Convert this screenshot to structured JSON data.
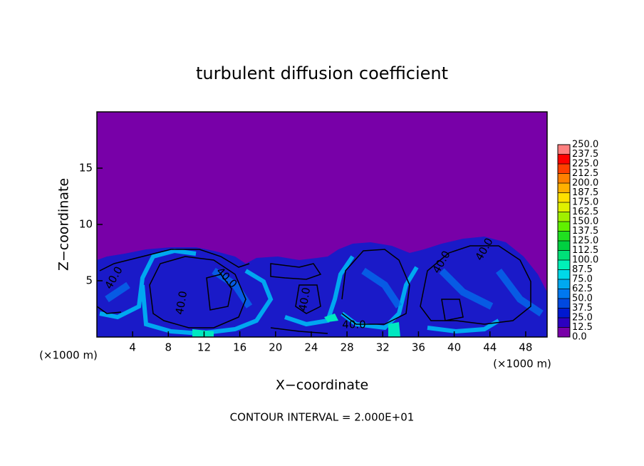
{
  "chart_data": {
    "type": "contour",
    "title": "turbulent diffusion coefficient",
    "xlabel": "X−coordinate",
    "ylabel": "Z−coordinate",
    "x_unit_left": "(×1000 m)",
    "x_unit_right": "(×1000 m)",
    "annotation": "CONTOUR INTERVAL = 2.000E+01",
    "xlim": [
      0,
      50.4
    ],
    "xticks": [
      4,
      8,
      12,
      16,
      20,
      24,
      28,
      32,
      36,
      40,
      44,
      48
    ],
    "ylim": [
      0,
      20
    ],
    "yticks": [
      5,
      10,
      15
    ],
    "contour_labels": [
      "40.0",
      "40.0",
      "40.0",
      "40.0",
      "40.0",
      "40.0",
      "40.0"
    ],
    "levels": [
      {
        "value": 0,
        "label": "0.0"
      },
      {
        "value": 12.5,
        "label": "12.5"
      },
      {
        "value": 25,
        "label": "25.0"
      },
      {
        "value": 37.5,
        "label": "37.5"
      },
      {
        "value": 50,
        "label": "50.0"
      },
      {
        "value": 62.5,
        "label": "62.5"
      },
      {
        "value": 75,
        "label": "75.0"
      },
      {
        "value": 87.5,
        "label": "87.5"
      },
      {
        "value": 100,
        "label": "100.0"
      },
      {
        "value": 112.5,
        "label": "112.5"
      },
      {
        "value": 125,
        "label": "125.0"
      },
      {
        "value": 137.5,
        "label": "137.5"
      },
      {
        "value": 150,
        "label": "150.0"
      },
      {
        "value": 162.5,
        "label": "162.5"
      },
      {
        "value": 175,
        "label": "175.0"
      },
      {
        "value": 187.5,
        "label": "187.5"
      },
      {
        "value": 200,
        "label": "200.0"
      },
      {
        "value": 212.5,
        "label": "212.5"
      },
      {
        "value": 225,
        "label": "225.0"
      },
      {
        "value": 237.5,
        "label": "237.5"
      },
      {
        "value": 250,
        "label": "250.0"
      }
    ],
    "colors": [
      "#7800a8",
      "#2c00c0",
      "#0018d0",
      "#0048e0",
      "#0078f0",
      "#00a8f0",
      "#00d8e8",
      "#00f0b8",
      "#00e078",
      "#00d040",
      "#20e020",
      "#60f000",
      "#a0f000",
      "#e0f000",
      "#ffe000",
      "#ffb000",
      "#ff8000",
      "#ff4000",
      "#ff0000",
      "#ff8080"
    ]
  }
}
